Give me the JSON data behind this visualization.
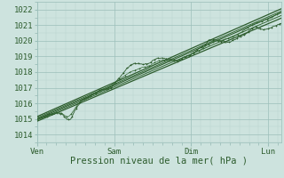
{
  "xlabel": "Pression niveau de la mer( hPa )",
  "bg_color": "#cde3de",
  "grid_color_minor": "#b8d4cf",
  "grid_color_major": "#9cbfba",
  "line_color": "#2d5c2d",
  "line_color2": "#336633",
  "ylim": [
    1013.5,
    1022.5
  ],
  "yticks": [
    1014,
    1015,
    1016,
    1017,
    1018,
    1019,
    1020,
    1021,
    1022
  ],
  "xtick_labels": [
    "Ven",
    "Sam",
    "Dim",
    "Lun"
  ],
  "xtick_positions": [
    0,
    24,
    48,
    72
  ],
  "font_color": "#2d5c2d",
  "font_size": 6.5,
  "xlabel_fontsize": 7.5,
  "xlim_max": 76
}
